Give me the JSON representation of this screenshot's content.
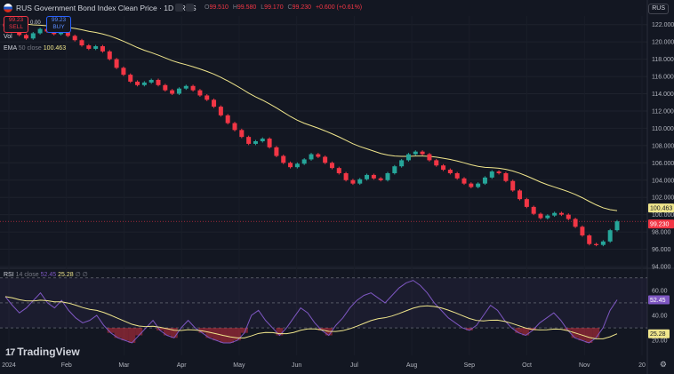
{
  "header": {
    "title": "RUS Government Bond Index Clean Price · 1D · RUS",
    "ohlc": {
      "o_label": "O",
      "o": "99.510",
      "h_label": "H",
      "h": "99.580",
      "l_label": "L",
      "l": "99.170",
      "c_label": "C",
      "c": "99.230",
      "change": "+0.600 (+0.61%)"
    },
    "symbol_badge": "RUS"
  },
  "trade": {
    "sell_price": "99.23",
    "sell_label": "SELL",
    "spread": "0.00",
    "buy_price": "99.23",
    "buy_label": "BUY"
  },
  "legend": {
    "vol": "Vol",
    "ema_name": "EMA",
    "ema_params": "50 close",
    "ema_value": "100.463"
  },
  "rsi_legend": {
    "name": "RSI",
    "params": "14 close",
    "rsi_value": "52.45",
    "ma_value": "25.28",
    "extra": "∅ ∅"
  },
  "logo": {
    "mark": "17",
    "text": "TradingView"
  },
  "colors": {
    "up": "#26a69a",
    "down": "#f23645",
    "ema": "#f0e68c",
    "rsi": "#7e57c2",
    "bg": "#131722"
  },
  "chart_data": [
    {
      "type": "candlestick",
      "title": "RUS Government Bond Index Clean Price",
      "interval": "1D",
      "x_ticks": [
        "2024",
        "Feb",
        "Mar",
        "Apr",
        "May",
        "Jun",
        "Jul",
        "Aug",
        "Sep",
        "Oct",
        "Nov",
        "20"
      ],
      "y_ticks": [
        "122.000",
        "120.000",
        "118.000",
        "116.000",
        "114.000",
        "112.000",
        "110.000",
        "108.000",
        "106.000",
        "104.000",
        "102.000",
        "100.000",
        "98.000",
        "96.000",
        "94.000"
      ],
      "ylim": [
        94,
        123
      ],
      "close_path": [
        121.8,
        121.3,
        120.8,
        120.4,
        121.0,
        121.5,
        121.2,
        120.9,
        121.3,
        120.7,
        120.2,
        119.6,
        119.2,
        119.5,
        118.9,
        118.0,
        117.0,
        116.2,
        115.4,
        115.0,
        115.3,
        115.6,
        115.0,
        114.4,
        114.0,
        114.6,
        114.9,
        114.4,
        113.8,
        113.3,
        112.5,
        111.5,
        110.6,
        109.8,
        109.0,
        108.2,
        108.5,
        108.8,
        107.8,
        106.8,
        106.0,
        105.5,
        105.9,
        106.4,
        107.0,
        106.7,
        106.0,
        105.4,
        104.8,
        104.0,
        103.6,
        104.1,
        104.6,
        104.2,
        104.0,
        104.8,
        105.6,
        106.3,
        107.0,
        107.3,
        107.0,
        106.3,
        105.7,
        105.2,
        104.8,
        104.2,
        103.6,
        103.2,
        103.6,
        104.3,
        105.0,
        104.8,
        103.9,
        102.8,
        101.8,
        100.9,
        100.1,
        99.6,
        99.9,
        100.2,
        100.0,
        99.5,
        98.6,
        97.6,
        96.6,
        96.5,
        96.9,
        98.2,
        99.23
      ],
      "ema_period": 50,
      "ema_last": 100.463,
      "last_price": 99.23,
      "price_labels": [
        "100.463",
        "99.230"
      ]
    },
    {
      "type": "line",
      "title": "RSI 14 close",
      "y_ticks": [
        "60.00",
        "40.00",
        "20.00"
      ],
      "ylim": [
        8,
        72
      ],
      "upper_band": 70,
      "middle_band": 50,
      "lower_band": 30,
      "rsi_path": [
        55,
        48,
        42,
        46,
        52,
        58,
        50,
        46,
        52,
        44,
        38,
        34,
        36,
        40,
        32,
        26,
        22,
        20,
        18,
        24,
        30,
        36,
        28,
        24,
        22,
        30,
        36,
        30,
        26,
        22,
        20,
        18,
        18,
        20,
        26,
        40,
        44,
        36,
        30,
        24,
        30,
        38,
        46,
        42,
        34,
        28,
        24,
        32,
        38,
        46,
        52,
        56,
        58,
        54,
        50,
        56,
        62,
        66,
        68,
        64,
        58,
        50,
        44,
        38,
        34,
        30,
        28,
        32,
        40,
        48,
        44,
        36,
        30,
        26,
        24,
        28,
        34,
        38,
        42,
        36,
        28,
        22,
        20,
        18,
        22,
        30,
        44,
        52.45
      ],
      "ma_last": 25.28,
      "labels": [
        "52.45",
        "25.28"
      ]
    }
  ]
}
